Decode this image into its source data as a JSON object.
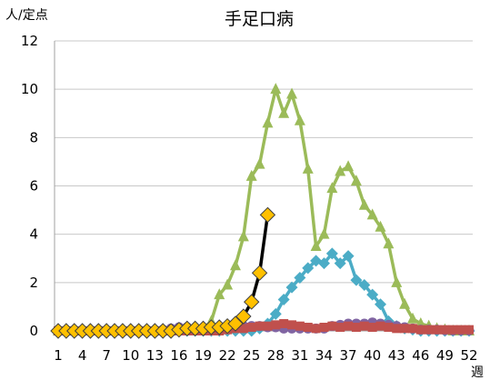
{
  "chart_data": {
    "type": "line",
    "title": "手足口病",
    "ylabel": "人/定点",
    "xlabel": "週",
    "ylim": [
      0,
      12
    ],
    "yticks": [
      0,
      2,
      4,
      6,
      8,
      10,
      12
    ],
    "xlim": [
      1,
      52
    ],
    "xticks": [
      1,
      4,
      7,
      10,
      13,
      16,
      19,
      22,
      25,
      28,
      31,
      34,
      37,
      40,
      43,
      46,
      49,
      52
    ],
    "grid": "horizontal",
    "legend": "none",
    "series": [
      {
        "color": "#9bbb59",
        "marker": "triangle",
        "x": [
          1,
          2,
          3,
          4,
          5,
          6,
          7,
          8,
          9,
          10,
          11,
          12,
          13,
          14,
          15,
          16,
          17,
          18,
          19,
          20,
          21,
          22,
          23,
          24,
          25,
          26,
          27,
          28,
          29,
          30,
          31,
          32,
          33,
          34,
          35,
          36,
          37,
          38,
          39,
          40,
          41,
          42,
          43,
          44,
          45,
          46,
          47,
          48,
          49,
          50,
          51,
          52
        ],
        "values": [
          0,
          0,
          0,
          0,
          0,
          0,
          0,
          0,
          0,
          0,
          0,
          0,
          0,
          0,
          0,
          0,
          0,
          0,
          0.1,
          0.4,
          1.5,
          1.9,
          2.7,
          3.9,
          6.4,
          6.9,
          8.6,
          10.0,
          9.0,
          9.8,
          8.7,
          6.7,
          3.5,
          4.0,
          5.9,
          6.6,
          6.8,
          6.2,
          5.2,
          4.8,
          4.3,
          3.6,
          2.0,
          1.1,
          0.5,
          0.3,
          0.2,
          0.1,
          0.05,
          0,
          0,
          0
        ]
      },
      {
        "color": "#4bacc6",
        "marker": "diamond",
        "x": [
          1,
          2,
          3,
          4,
          5,
          6,
          7,
          8,
          9,
          10,
          11,
          12,
          13,
          14,
          15,
          16,
          17,
          18,
          19,
          20,
          21,
          22,
          23,
          24,
          25,
          26,
          27,
          28,
          29,
          30,
          31,
          32,
          33,
          34,
          35,
          36,
          37,
          38,
          39,
          40,
          41,
          42,
          43,
          44,
          45,
          46,
          47,
          48,
          49,
          50,
          51,
          52
        ],
        "values": [
          0,
          0,
          0,
          0,
          0,
          0,
          0,
          0,
          0,
          0,
          0,
          0,
          0,
          0,
          0,
          0,
          0,
          0,
          0,
          0,
          0,
          0,
          0,
          0,
          0,
          0.1,
          0.3,
          0.7,
          1.3,
          1.8,
          2.2,
          2.6,
          2.9,
          2.8,
          3.2,
          2.8,
          3.1,
          2.1,
          1.9,
          1.5,
          1.1,
          0.4,
          0.2,
          0.1,
          0.05,
          0,
          0,
          0,
          0,
          0,
          0,
          0
        ]
      },
      {
        "color": "#8064a2",
        "marker": "circle",
        "x": [
          1,
          2,
          3,
          4,
          5,
          6,
          7,
          8,
          9,
          10,
          11,
          12,
          13,
          14,
          15,
          16,
          17,
          18,
          19,
          20,
          21,
          22,
          23,
          24,
          25,
          26,
          27,
          28,
          29,
          30,
          31,
          32,
          33,
          34,
          35,
          36,
          37,
          38,
          39,
          40,
          41,
          42,
          43,
          44,
          45,
          46,
          47,
          48,
          49,
          50,
          51,
          52
        ],
        "values": [
          0,
          0,
          0,
          0,
          0,
          0,
          0,
          0,
          0,
          0,
          0,
          0,
          0.02,
          0.05,
          0.1,
          0.15,
          0.15,
          0.1,
          0.1,
          0.1,
          0.1,
          0.1,
          0.15,
          0.2,
          0.2,
          0.2,
          0.15,
          0.15,
          0.1,
          0.1,
          0.1,
          0.1,
          0.1,
          0.1,
          0.2,
          0.25,
          0.3,
          0.3,
          0.3,
          0.35,
          0.3,
          0.25,
          0.2,
          0.15,
          0.1,
          0.05,
          0.05,
          0.05,
          0.03,
          0.02,
          0.02,
          0.02
        ]
      },
      {
        "color": "#c0504d",
        "marker": "square",
        "x": [
          1,
          2,
          3,
          4,
          5,
          6,
          7,
          8,
          9,
          10,
          11,
          12,
          13,
          14,
          15,
          16,
          17,
          18,
          19,
          20,
          21,
          22,
          23,
          24,
          25,
          26,
          27,
          28,
          29,
          30,
          31,
          32,
          33,
          34,
          35,
          36,
          37,
          38,
          39,
          40,
          41,
          42,
          43,
          44,
          45,
          46,
          47,
          48,
          49,
          50,
          51,
          52
        ],
        "values": [
          0,
          0,
          0,
          0,
          0,
          0,
          0,
          0,
          0,
          0,
          0,
          0,
          0,
          0,
          0,
          0,
          0,
          0,
          0,
          0,
          0,
          0.05,
          0.1,
          0.1,
          0.15,
          0.2,
          0.2,
          0.25,
          0.3,
          0.25,
          0.2,
          0.15,
          0.1,
          0.15,
          0.2,
          0.15,
          0.2,
          0.15,
          0.2,
          0.15,
          0.2,
          0.15,
          0.1,
          0.1,
          0.1,
          0.05,
          0.05,
          0.05,
          0.05,
          0.05,
          0.05,
          0.05
        ]
      },
      {
        "color": "#000000",
        "marker": "diamond",
        "marker_fill": "#ffc000",
        "x": [
          1,
          2,
          3,
          4,
          5,
          6,
          7,
          8,
          9,
          10,
          11,
          12,
          13,
          14,
          15,
          16,
          17,
          18,
          19,
          20,
          21,
          22,
          23,
          24,
          25,
          26,
          27
        ],
        "values": [
          0,
          0,
          0,
          0,
          0,
          0,
          0,
          0,
          0,
          0,
          0,
          0,
          0,
          0,
          0,
          0.05,
          0.1,
          0.1,
          0.1,
          0.15,
          0.15,
          0.2,
          0.3,
          0.6,
          1.2,
          2.4,
          4.8
        ]
      }
    ]
  }
}
